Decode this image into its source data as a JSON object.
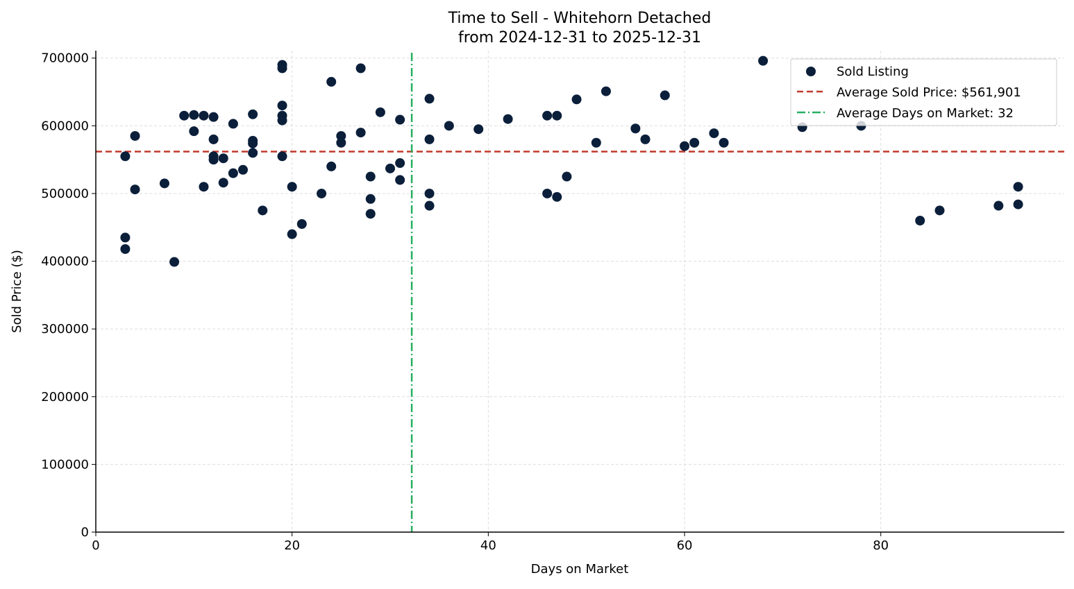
{
  "chart_data": {
    "type": "scatter",
    "title": "Time to Sell - Whitehorn Detached",
    "subtitle": "from 2024-12-31 to 2025-12-31",
    "xlabel": "Days on Market",
    "ylabel": "Sold Price ($)",
    "xlim": [
      0,
      98.7
    ],
    "ylim": [
      0,
      711000
    ],
    "xticks": [
      0,
      20,
      40,
      60,
      80
    ],
    "yticks": [
      0,
      100000,
      200000,
      300000,
      400000,
      500000,
      600000,
      700000
    ],
    "grid": true,
    "legend_position": "top-right",
    "colors": {
      "points": "#0b1f3a",
      "avg_price": "#c0392b",
      "avg_days": "#27ae60"
    },
    "avg_price": 561901,
    "avg_days": 32.2,
    "legend": [
      "Sold Listing",
      "Average Sold Price: $561,901",
      "Average Days on Market: 32"
    ],
    "points": [
      [
        3,
        555000
      ],
      [
        3,
        435000
      ],
      [
        3,
        418000
      ],
      [
        4,
        585000
      ],
      [
        4,
        506000
      ],
      [
        7,
        515000
      ],
      [
        8,
        399000
      ],
      [
        9,
        615000
      ],
      [
        10,
        616000
      ],
      [
        10,
        592000
      ],
      [
        11,
        615000
      ],
      [
        11,
        510000
      ],
      [
        12,
        613000
      ],
      [
        12,
        580000
      ],
      [
        12,
        555000
      ],
      [
        12,
        550000
      ],
      [
        13,
        552000
      ],
      [
        13,
        516000
      ],
      [
        14,
        603000
      ],
      [
        14,
        530000
      ],
      [
        15,
        535000
      ],
      [
        16,
        617000
      ],
      [
        16,
        578000
      ],
      [
        16,
        574000
      ],
      [
        16,
        560000
      ],
      [
        17,
        475000
      ],
      [
        19,
        690000
      ],
      [
        19,
        685000
      ],
      [
        19,
        630000
      ],
      [
        19,
        615000
      ],
      [
        19,
        608000
      ],
      [
        19,
        555000
      ],
      [
        20,
        510000
      ],
      [
        20,
        440000
      ],
      [
        21,
        455000
      ],
      [
        23,
        500000
      ],
      [
        24,
        665000
      ],
      [
        24,
        540000
      ],
      [
        25,
        585000
      ],
      [
        25,
        575000
      ],
      [
        27,
        685000
      ],
      [
        27,
        590000
      ],
      [
        28,
        525000
      ],
      [
        28,
        492000
      ],
      [
        28,
        470000
      ],
      [
        29,
        620000
      ],
      [
        30,
        537000
      ],
      [
        31,
        609000
      ],
      [
        31,
        545000
      ],
      [
        31,
        520000
      ],
      [
        34,
        640000
      ],
      [
        34,
        580000
      ],
      [
        34,
        500000
      ],
      [
        34,
        482000
      ],
      [
        36,
        600000
      ],
      [
        39,
        595000
      ],
      [
        42,
        610000
      ],
      [
        46,
        615000
      ],
      [
        46,
        500000
      ],
      [
        47,
        615000
      ],
      [
        47,
        495000
      ],
      [
        48,
        525000
      ],
      [
        49,
        639000
      ],
      [
        51,
        575000
      ],
      [
        52,
        651000
      ],
      [
        55,
        596000
      ],
      [
        56,
        580000
      ],
      [
        58,
        645000
      ],
      [
        60,
        570000
      ],
      [
        61,
        575000
      ],
      [
        63,
        589000
      ],
      [
        64,
        575000
      ],
      [
        68,
        696000
      ],
      [
        72,
        598000
      ],
      [
        78,
        600000
      ],
      [
        84,
        460000
      ],
      [
        86,
        475000
      ],
      [
        92,
        482000
      ],
      [
        94,
        510000
      ],
      [
        94,
        484000
      ]
    ]
  }
}
